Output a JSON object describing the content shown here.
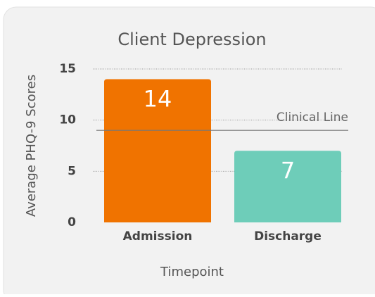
{
  "chart_data": {
    "type": "bar",
    "title": "Client Depression",
    "x_label": "Timepoint",
    "y_label": "Average PHQ-9 Scores",
    "categories": [
      "Admission",
      "Discharge"
    ],
    "values": [
      14,
      7
    ],
    "colors": [
      "#f07300",
      "#6ecdb9"
    ],
    "ylim": [
      0,
      15
    ],
    "yticks": [
      0,
      5,
      10,
      15
    ],
    "grid": true,
    "reference_line": {
      "value": 9,
      "label": "Clinical Line"
    }
  }
}
